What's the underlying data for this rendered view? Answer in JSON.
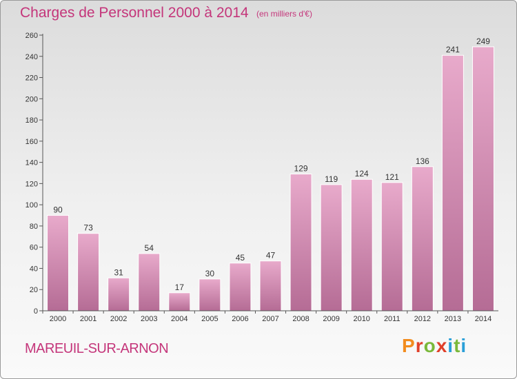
{
  "header": {
    "title": "Charges de Personnel 2000 à 2014",
    "subtitle": "(en milliers d'€)"
  },
  "footer": {
    "commune": "MAREUIL-SUR-ARNON",
    "brand": "Proxiti"
  },
  "colors": {
    "accent": "#c4357a",
    "bar_top": "#e8aacb",
    "bar_bottom": "#b56c95"
  },
  "chart_data": {
    "type": "bar",
    "categories": [
      "2000",
      "2001",
      "2002",
      "2003",
      "2004",
      "2005",
      "2006",
      "2007",
      "2008",
      "2009",
      "2010",
      "2011",
      "2012",
      "2013",
      "2014"
    ],
    "values": [
      90,
      73,
      31,
      54,
      17,
      30,
      45,
      47,
      129,
      119,
      124,
      121,
      136,
      241,
      249
    ],
    "ylim": [
      0,
      260
    ],
    "yticks": [
      0,
      20,
      40,
      60,
      80,
      100,
      120,
      140,
      160,
      180,
      200,
      220,
      240,
      260
    ],
    "grid": false,
    "data_labels": true
  }
}
